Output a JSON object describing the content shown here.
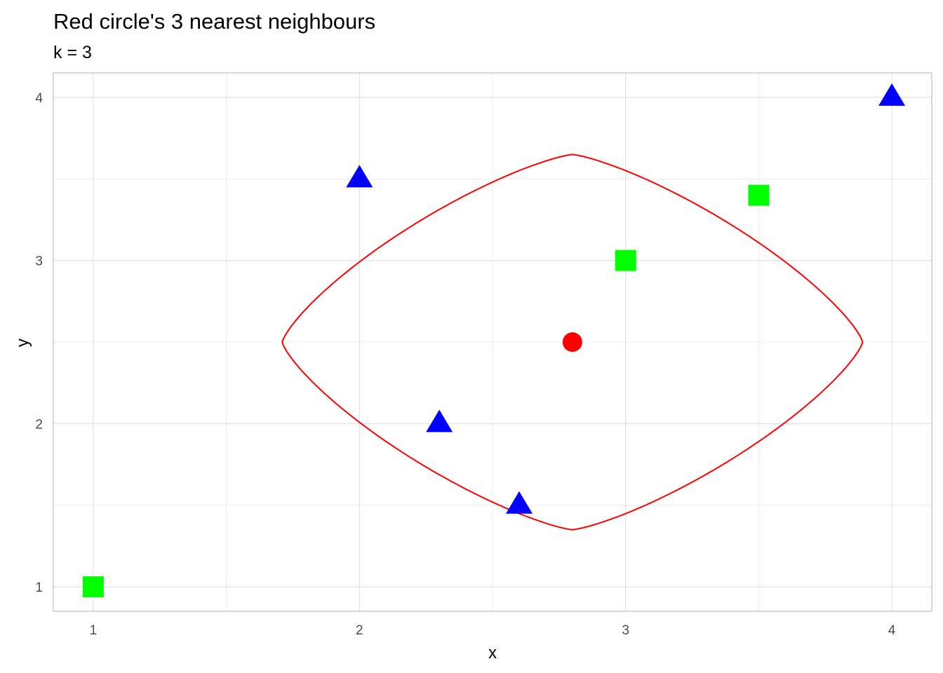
{
  "chart_data": {
    "type": "scatter",
    "title": "Red circle's 3 nearest neighbours",
    "subtitle": "k = 3",
    "xlabel": "x",
    "ylabel": "y",
    "xlim": [
      0.85,
      4.15
    ],
    "ylim": [
      0.85,
      4.15
    ],
    "x_ticks": [
      "1",
      "2",
      "3",
      "4"
    ],
    "y_ticks": [
      "1",
      "2",
      "3",
      "4"
    ],
    "grid": true,
    "colors": {
      "square": "#00ff00",
      "triangle": "#0000ff",
      "circle": "#ff0000",
      "ring": "#ff0000",
      "panel_border": "#b3b3b3"
    },
    "points": [
      {
        "x": 1.0,
        "y": 1.0,
        "shape": "square"
      },
      {
        "x": 2.0,
        "y": 3.5,
        "shape": "triangle"
      },
      {
        "x": 2.3,
        "y": 2.0,
        "shape": "triangle"
      },
      {
        "x": 2.6,
        "y": 1.5,
        "shape": "triangle"
      },
      {
        "x": 2.8,
        "y": 2.5,
        "shape": "circle"
      },
      {
        "x": 3.0,
        "y": 3.0,
        "shape": "square"
      },
      {
        "x": 3.5,
        "y": 3.4,
        "shape": "square"
      },
      {
        "x": 4.0,
        "y": 4.0,
        "shape": "triangle"
      }
    ],
    "neighbourhood": {
      "center": [
        2.8,
        2.5
      ],
      "x_radius": 1.09,
      "y_radius": 1.15,
      "exponent": 1.3
    }
  }
}
